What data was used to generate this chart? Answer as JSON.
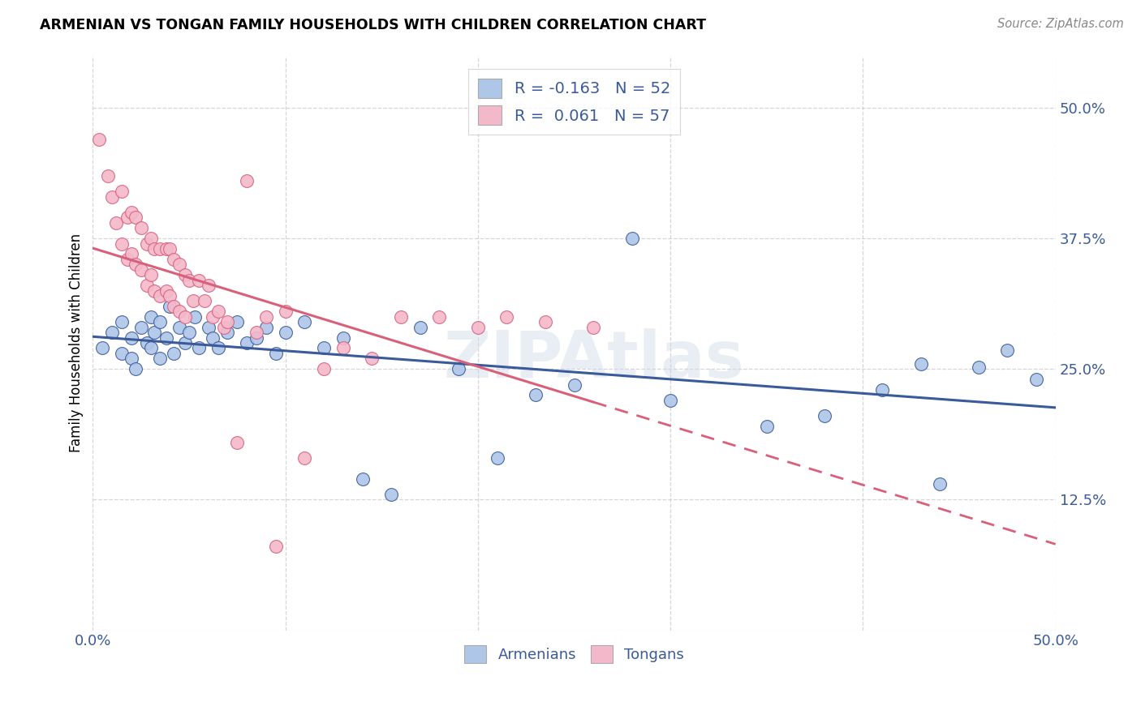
{
  "title": "ARMENIAN VS TONGAN FAMILY HOUSEHOLDS WITH CHILDREN CORRELATION CHART",
  "source": "Source: ZipAtlas.com",
  "ylabel": "Family Households with Children",
  "xlim": [
    0.0,
    0.5
  ],
  "ylim": [
    0.0,
    0.55
  ],
  "armenian_R": -0.163,
  "armenian_N": 52,
  "tongan_R": 0.061,
  "tongan_N": 57,
  "armenian_color": "#aec6e8",
  "tongan_color": "#f4b8cb",
  "armenian_line_color": "#3a5a9b",
  "tongan_line_color": "#d9607a",
  "watermark": "ZIPAtlas",
  "armenian_x": [
    0.005,
    0.01,
    0.015,
    0.015,
    0.02,
    0.02,
    0.022,
    0.025,
    0.028,
    0.03,
    0.03,
    0.032,
    0.035,
    0.035,
    0.038,
    0.04,
    0.042,
    0.045,
    0.048,
    0.05,
    0.053,
    0.055,
    0.06,
    0.062,
    0.065,
    0.07,
    0.075,
    0.08,
    0.085,
    0.09,
    0.095,
    0.1,
    0.11,
    0.12,
    0.13,
    0.14,
    0.155,
    0.17,
    0.19,
    0.21,
    0.23,
    0.25,
    0.28,
    0.3,
    0.35,
    0.38,
    0.41,
    0.43,
    0.44,
    0.46,
    0.475,
    0.49
  ],
  "armenian_y": [
    0.27,
    0.285,
    0.295,
    0.265,
    0.28,
    0.26,
    0.25,
    0.29,
    0.275,
    0.3,
    0.27,
    0.285,
    0.26,
    0.295,
    0.28,
    0.31,
    0.265,
    0.29,
    0.275,
    0.285,
    0.3,
    0.27,
    0.29,
    0.28,
    0.27,
    0.285,
    0.295,
    0.275,
    0.28,
    0.29,
    0.265,
    0.285,
    0.295,
    0.27,
    0.28,
    0.145,
    0.13,
    0.29,
    0.25,
    0.165,
    0.225,
    0.235,
    0.375,
    0.22,
    0.195,
    0.205,
    0.23,
    0.255,
    0.14,
    0.252,
    0.268,
    0.24
  ],
  "tongan_x": [
    0.003,
    0.008,
    0.01,
    0.012,
    0.015,
    0.015,
    0.018,
    0.018,
    0.02,
    0.02,
    0.022,
    0.022,
    0.025,
    0.025,
    0.028,
    0.028,
    0.03,
    0.03,
    0.032,
    0.032,
    0.035,
    0.035,
    0.038,
    0.038,
    0.04,
    0.04,
    0.042,
    0.042,
    0.045,
    0.045,
    0.048,
    0.048,
    0.05,
    0.052,
    0.055,
    0.058,
    0.06,
    0.062,
    0.065,
    0.068,
    0.07,
    0.075,
    0.08,
    0.085,
    0.09,
    0.095,
    0.1,
    0.11,
    0.12,
    0.13,
    0.145,
    0.16,
    0.18,
    0.2,
    0.215,
    0.235,
    0.26
  ],
  "tongan_y": [
    0.47,
    0.435,
    0.415,
    0.39,
    0.42,
    0.37,
    0.395,
    0.355,
    0.4,
    0.36,
    0.395,
    0.35,
    0.385,
    0.345,
    0.37,
    0.33,
    0.375,
    0.34,
    0.365,
    0.325,
    0.365,
    0.32,
    0.365,
    0.325,
    0.365,
    0.32,
    0.355,
    0.31,
    0.35,
    0.305,
    0.34,
    0.3,
    0.335,
    0.315,
    0.335,
    0.315,
    0.33,
    0.3,
    0.305,
    0.29,
    0.295,
    0.18,
    0.43,
    0.285,
    0.3,
    0.08,
    0.305,
    0.165,
    0.25,
    0.27,
    0.26,
    0.3,
    0.3,
    0.29,
    0.3,
    0.295,
    0.29
  ]
}
